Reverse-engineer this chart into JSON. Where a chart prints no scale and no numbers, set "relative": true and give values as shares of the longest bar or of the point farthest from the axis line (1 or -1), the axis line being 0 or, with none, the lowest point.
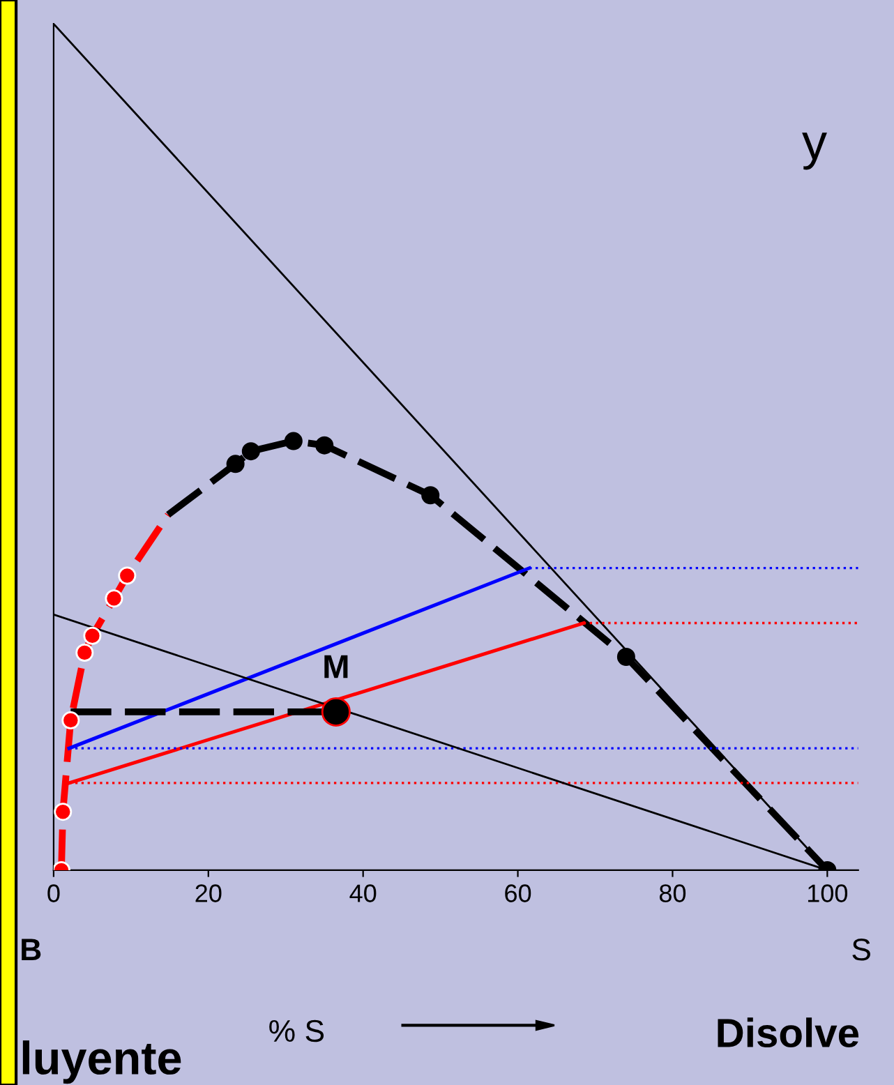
{
  "chart_data": {
    "type": "line",
    "relative": true,
    "xlim": [
      0,
      104
    ],
    "xticks": [
      0,
      20,
      40,
      60,
      80,
      100
    ],
    "grid": false,
    "legend": false,
    "series": [
      {
        "x": [
          0,
          100
        ],
        "values": [
          1,
          0
        ],
        "color": "#000000",
        "line_style": "solid"
      },
      {
        "x": [
          1,
          1.2,
          2.2,
          4,
          5,
          7.8,
          9.5,
          14.8
        ],
        "values": [
          0,
          0.069,
          0.177,
          0.257,
          0.277,
          0.321,
          0.348,
          0.42
        ],
        "color": "#ff0000",
        "line_style": "dashed"
      },
      {
        "x": [
          14.8,
          23.5,
          25.5,
          31,
          35,
          48.7,
          74,
          100
        ],
        "values": [
          0.42,
          0.48,
          0.495,
          0.507,
          0.502,
          0.443,
          0.252,
          0
        ],
        "color": "#000000",
        "line_style": "dashed"
      },
      {
        "type": "scatter",
        "x": [
          1,
          1.2,
          2.2,
          4,
          5,
          7.8,
          9.5
        ],
        "values": [
          0,
          0.069,
          0.177,
          0.257,
          0.277,
          0.321,
          0.348
        ],
        "color": "#ff0000",
        "marker": "circle"
      },
      {
        "type": "scatter",
        "x": [
          23.5,
          25.5,
          31,
          35,
          48.7,
          74,
          100
        ],
        "values": [
          0.48,
          0.495,
          0.507,
          0.502,
          0.443,
          0.252,
          0
        ],
        "color": "#000000",
        "marker": "circle"
      },
      {
        "x": [
          2,
          61.5
        ],
        "values": [
          0.144,
          0.357
        ],
        "color": "#0000ff",
        "line_style": "solid"
      },
      {
        "x": [
          2,
          68.5
        ],
        "values": [
          0.103,
          0.292
        ],
        "color": "#ff0000",
        "line_style": "solid"
      },
      {
        "x": [
          61.5,
          104
        ],
        "values": [
          0.357,
          0.357
        ],
        "color": "#0000ff",
        "line_style": "dotted"
      },
      {
        "x": [
          2,
          104
        ],
        "values": [
          0.144,
          0.144
        ],
        "color": "#0000ff",
        "line_style": "dotted"
      },
      {
        "x": [
          68.5,
          104
        ],
        "values": [
          0.292,
          0.292
        ],
        "color": "#ff0000",
        "line_style": "dotted"
      },
      {
        "x": [
          2,
          104
        ],
        "values": [
          0.103,
          0.103
        ],
        "color": "#ff0000",
        "line_style": "dotted"
      },
      {
        "x": [
          2.2,
          36.5
        ],
        "values": [
          0.187,
          0.187
        ],
        "color": "#000000",
        "line_style": "dashed"
      },
      {
        "x": [
          0,
          100
        ],
        "values": [
          0.302,
          0
        ],
        "color": "#000000",
        "line_style": "solid"
      },
      {
        "type": "scatter",
        "x": [
          36.5
        ],
        "values": [
          0.187
        ],
        "color": "#000000",
        "marker": "circle"
      }
    ],
    "annotations": [
      {
        "text": "M",
        "x": 36.5,
        "y": 0.187
      },
      "y",
      "B",
      "luyente",
      "% S",
      "Disolve",
      "S"
    ]
  }
}
